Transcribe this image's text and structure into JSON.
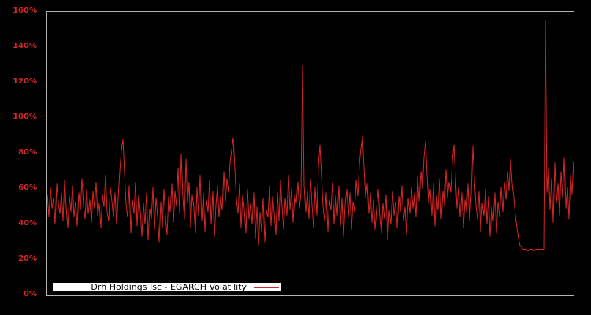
{
  "chart_data": {
    "type": "line",
    "legend_position": "lower-left-inside",
    "background_color": "#000000",
    "plot_border_color": "#b3b3b3",
    "tick_color": "#d62728",
    "legend_bg_color": "#ffffff",
    "legend_text_color": "#000000",
    "grid": false,
    "ylim": [
      0,
      160
    ],
    "yticks": [
      {
        "label": "0%",
        "value": 0
      },
      {
        "label": "20%",
        "value": 20
      },
      {
        "label": "40%",
        "value": 40
      },
      {
        "label": "60%",
        "value": 60
      },
      {
        "label": "80%",
        "value": 80
      },
      {
        "label": "100%",
        "value": 100
      },
      {
        "label": "120%",
        "value": 120
      },
      {
        "label": "140%",
        "value": 140
      },
      {
        "label": "160%",
        "value": 160
      }
    ],
    "x_axis_labels_visible": false,
    "unit": "percent",
    "series": [
      {
        "name": "Drh Holdings Jsc - EGARCH Volatility",
        "color": "#d62728",
        "values": [
          57,
          44,
          61,
          49,
          55,
          40,
          63,
          52,
          46,
          58,
          42,
          65,
          50,
          38,
          56,
          47,
          62,
          44,
          53,
          39,
          58,
          48,
          66,
          51,
          43,
          60,
          46,
          54,
          41,
          59,
          49,
          64,
          45,
          52,
          38,
          57,
          50,
          68,
          47,
          42,
          61,
          53,
          44,
          58,
          40,
          55,
          70,
          82,
          88,
          69,
          51,
          44,
          62,
          35,
          54,
          46,
          64,
          39,
          57,
          48,
          33,
          52,
          40,
          58,
          31,
          49,
          43,
          61,
          37,
          55,
          45,
          30,
          53,
          38,
          60,
          44,
          34,
          56,
          47,
          63,
          41,
          59,
          50,
          72,
          46,
          80,
          55,
          43,
          77,
          52,
          64,
          38,
          57,
          49,
          35,
          61,
          45,
          68,
          42,
          58,
          36,
          54,
          47,
          65,
          40,
          59,
          33,
          51,
          62,
          44,
          56,
          48,
          70,
          53,
          66,
          58,
          75,
          82,
          89,
          71,
          54,
          46,
          63,
          38,
          57,
          49,
          35,
          60,
          43,
          52,
          40,
          58,
          32,
          50,
          28,
          47,
          36,
          55,
          30,
          48,
          44,
          62,
          39,
          56,
          47,
          34,
          58,
          42,
          65,
          50,
          37,
          55,
          45,
          68,
          48,
          60,
          41,
          57,
          52,
          64,
          49,
          58,
          130,
          62,
          47,
          59,
          43,
          66,
          51,
          38,
          61,
          45,
          73,
          85,
          67,
          50,
          42,
          58,
          36,
          54,
          48,
          64,
          40,
          57,
          45,
          62,
          39,
          55,
          33,
          51,
          60,
          44,
          58,
          37,
          53,
          47,
          65,
          56,
          74,
          83,
          90,
          72,
          55,
          63,
          46,
          58,
          41,
          54,
          37,
          49,
          60,
          44,
          35,
          52,
          43,
          57,
          31,
          48,
          40,
          59,
          45,
          53,
          38,
          56,
          47,
          62,
          42,
          50,
          34,
          55,
          46,
          61,
          49,
          58,
          44,
          67,
          53,
          70,
          60,
          78,
          87,
          68,
          52,
          60,
          45,
          63,
          39,
          57,
          48,
          66,
          43,
          59,
          50,
          71,
          55,
          64,
          58,
          76,
          85,
          66,
          49,
          61,
          44,
          58,
          38,
          54,
          47,
          63,
          42,
          57,
          84,
          65,
          51,
          43,
          59,
          36,
          52,
          45,
          60,
          40,
          56,
          33,
          50,
          42,
          58,
          35,
          53,
          44,
          61,
          47,
          64,
          54,
          70,
          59,
          77,
          63,
          55,
          45,
          38,
          32,
          28,
          27,
          26,
          26,
          26,
          25,
          26,
          26,
          26,
          25,
          26,
          26,
          26,
          26,
          26,
          26,
          155,
          58,
          72,
          48,
          66,
          41,
          75,
          52,
          63,
          45,
          70,
          55,
          78,
          49,
          61,
          43,
          68,
          57,
          76
        ]
      }
    ]
  }
}
